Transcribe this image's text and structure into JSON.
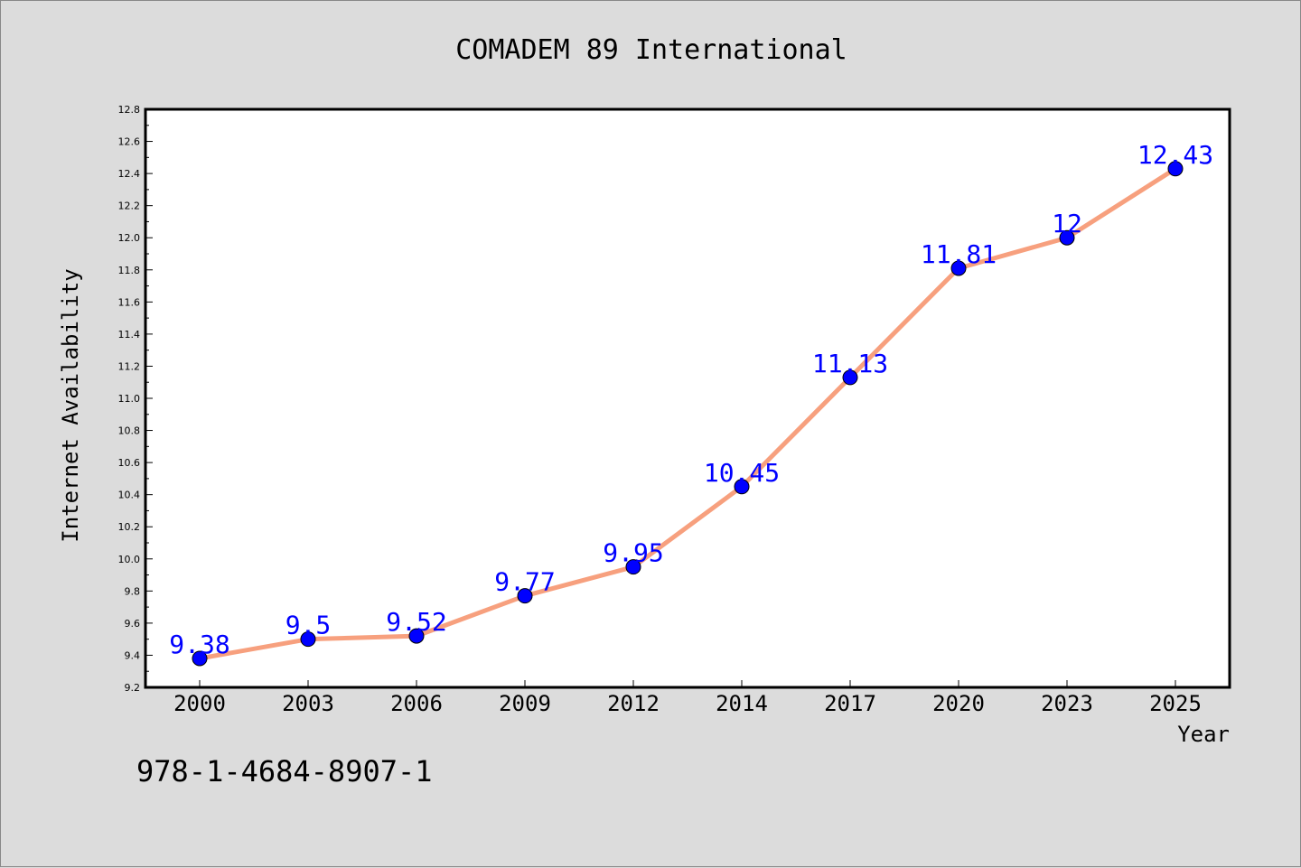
{
  "chart_data": {
    "type": "line",
    "title": "COMADEM 89 International",
    "xlabel": "Year",
    "ylabel": "Internet Availability",
    "categories": [
      "2000",
      "2003",
      "2006",
      "2009",
      "2012",
      "2014",
      "2017",
      "2020",
      "2023",
      "2025"
    ],
    "series": [
      {
        "values": [
          9.38,
          9.5,
          9.52,
          9.77,
          9.95,
          10.45,
          11.13,
          11.81,
          12,
          12.43
        ],
        "data_labels": [
          "9.38",
          "9.5",
          "9.52",
          "9.77",
          "9.95",
          "10.45",
          "11.13",
          "11.81",
          "12",
          "12.43"
        ],
        "line_color": "#f7a07e",
        "marker_color": "#0000ff"
      }
    ],
    "ylim": [
      9.2,
      12.8
    ],
    "yticks": [
      "9.2",
      "9.4",
      "9.6",
      "9.8",
      "10.0",
      "10.2",
      "10.4",
      "10.6",
      "10.8",
      "11.0",
      "11.2",
      "11.4",
      "11.6",
      "11.8",
      "12.0",
      "12.2",
      "12.4",
      "12.6",
      "12.8"
    ],
    "grid": false,
    "legend": "none"
  },
  "footnote": "978-1-4684-8907-1",
  "colors": {
    "background": "#dcdcdc",
    "plot_background": "#ffffff",
    "axis": "#000000",
    "label_color": "#0000ff"
  }
}
